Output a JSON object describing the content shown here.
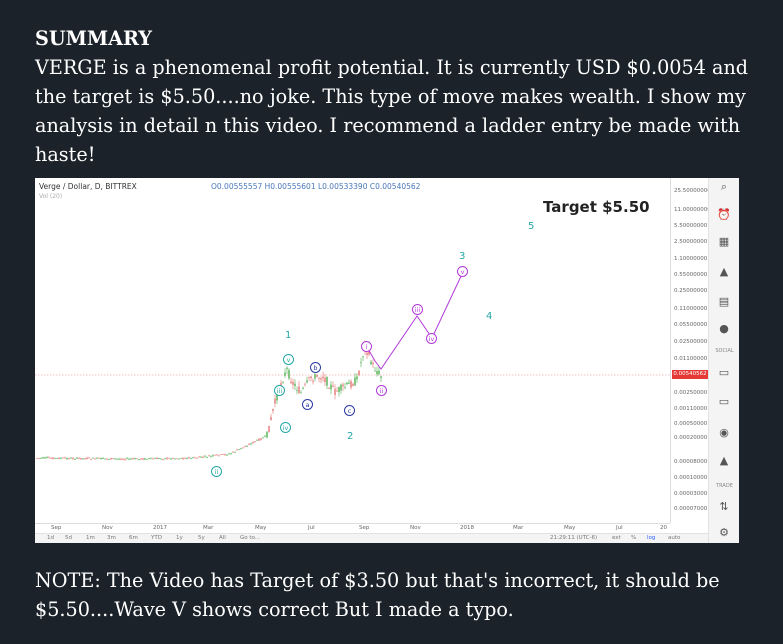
{
  "summary": {
    "title": "SUMMARY",
    "body": "VERGE is a phenomenal profit potential. It is currently USD $0.0054 and the target is $5.50....no joke. This type of move makes wealth. I show my analysis in detail n this video. I recommend a ladder entry be made with haste!"
  },
  "note": "NOTE: The Video has Target of $3.50 but that's incorrect, it should be $5.50....Wave V shows correct But I made a typo.",
  "chart": {
    "title": "Verge / Dollar, D, BITTREX",
    "ohlc": "O0.00555557 H0.00555601 L0.00533390 C0.00540562",
    "volume_label": "Vol (20)",
    "target_label": "Target $5.50",
    "current_price": "0.00540562",
    "price_ticks": [
      "25.50000000",
      "11.00000000",
      "5.50000000",
      "2.50000000",
      "1.10000000",
      "0.55000000",
      "0.25000000",
      "0.11000000",
      "0.05500000",
      "0.02500000",
      "0.01100000",
      "0.00250000",
      "0.00110000",
      "0.00050000",
      "0.00020000",
      "0.00008000",
      "0.00010000",
      "0.00003000",
      "0.00007000"
    ],
    "date_ticks": [
      "Sep",
      "Nov",
      "2017",
      "Mar",
      "May",
      "Jul",
      "Sep",
      "Nov",
      "2018",
      "Mar",
      "May",
      "Jul",
      "20"
    ],
    "range_buttons": [
      "1d",
      "5d",
      "1m",
      "3m",
      "6m",
      "YTD",
      "1y",
      "5y",
      "All",
      "Go to..."
    ],
    "bottom_right": [
      "21:29:11 (UTC-6)",
      "ext",
      "%",
      "log",
      "auto"
    ],
    "toolbar_labels": [
      "SOCIAL",
      "TRADE"
    ],
    "wave_numbers": [
      "1",
      "2",
      "3",
      "4",
      "5"
    ],
    "wave_labels_minor": [
      "ii",
      "iii",
      "iv",
      "v",
      "a",
      "b",
      "c"
    ],
    "wave_labels_major": [
      "i",
      "ii",
      "iii",
      "iv",
      "v"
    ],
    "colors": {
      "teal": "#26a6a6",
      "purple": "#b23ad8",
      "navy": "#2b3aa0",
      "price_red": "#e53935"
    }
  }
}
